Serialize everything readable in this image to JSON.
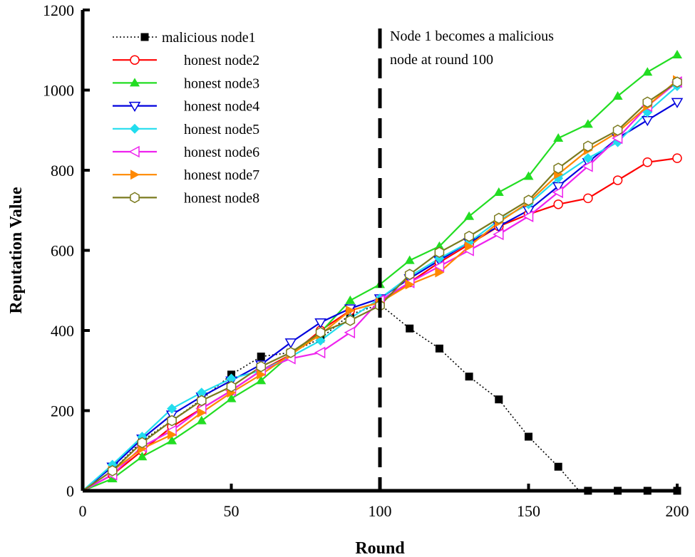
{
  "chart_data": {
    "type": "line",
    "title": "",
    "xlabel": "Round",
    "ylabel": "Reputation Value",
    "xlim": [
      0,
      200
    ],
    "ylim": [
      0,
      1200
    ],
    "xticks": [
      0,
      50,
      100,
      150,
      200
    ],
    "yticks": [
      0,
      200,
      400,
      600,
      800,
      1000,
      1200
    ],
    "legend_position": "top-left",
    "annotation": {
      "lines": [
        "Node 1 becomes a malicious",
        "node at round 100"
      ],
      "x": 100
    },
    "series": [
      {
        "name": "malicious node1",
        "color": "#000000",
        "marker": "filled-square",
        "dash": "dotted",
        "x": [
          0,
          10,
          20,
          30,
          40,
          50,
          60,
          70,
          80,
          90,
          100,
          110,
          120,
          130,
          140,
          150,
          160,
          167,
          170,
          180,
          190,
          200
        ],
        "y": [
          0,
          50,
          125,
          175,
          228,
          290,
          335,
          345,
          380,
          440,
          465,
          405,
          355,
          285,
          228,
          135,
          60,
          0,
          0,
          0,
          0,
          0
        ]
      },
      {
        "name": "honest node2",
        "color": "#ff0000",
        "marker": "open-circle",
        "dash": "solid",
        "x": [
          0,
          10,
          20,
          30,
          40,
          50,
          60,
          70,
          80,
          90,
          100,
          110,
          120,
          130,
          140,
          150,
          160,
          170,
          180,
          190,
          200
        ],
        "y": [
          0,
          40,
          100,
          160,
          205,
          250,
          300,
          340,
          400,
          450,
          470,
          520,
          570,
          615,
          660,
          690,
          715,
          730,
          775,
          820,
          830
        ]
      },
      {
        "name": "honest node3",
        "color": "#22dd22",
        "marker": "filled-triangle-up",
        "dash": "solid",
        "x": [
          0,
          10,
          20,
          30,
          40,
          50,
          60,
          70,
          80,
          90,
          100,
          110,
          120,
          130,
          140,
          150,
          160,
          170,
          180,
          190,
          200
        ],
        "y": [
          0,
          30,
          85,
          125,
          175,
          230,
          275,
          340,
          395,
          475,
          515,
          575,
          610,
          685,
          745,
          785,
          880,
          915,
          985,
          1045,
          1088
        ]
      },
      {
        "name": "honest node4",
        "color": "#0000dd",
        "marker": "open-triangle-down",
        "dash": "solid",
        "x": [
          0,
          10,
          20,
          30,
          40,
          50,
          60,
          70,
          80,
          90,
          100,
          110,
          120,
          130,
          140,
          150,
          160,
          170,
          180,
          190,
          200
        ],
        "y": [
          0,
          60,
          130,
          190,
          235,
          275,
          315,
          370,
          420,
          455,
          480,
          530,
          575,
          620,
          660,
          700,
          760,
          820,
          880,
          925,
          970
        ]
      },
      {
        "name": "honest node5",
        "color": "#22ddee",
        "marker": "filled-diamond",
        "dash": "solid",
        "x": [
          0,
          10,
          20,
          30,
          40,
          50,
          60,
          70,
          80,
          90,
          100,
          110,
          120,
          130,
          140,
          150,
          160,
          170,
          180,
          190,
          200
        ],
        "y": [
          0,
          65,
          135,
          205,
          245,
          280,
          300,
          335,
          375,
          430,
          480,
          535,
          580,
          620,
          675,
          715,
          780,
          830,
          870,
          945,
          1010
        ]
      },
      {
        "name": "honest node6",
        "color": "#ee22ee",
        "marker": "open-triangle-left",
        "dash": "solid",
        "x": [
          0,
          10,
          20,
          30,
          40,
          50,
          60,
          70,
          80,
          90,
          100,
          110,
          120,
          130,
          140,
          150,
          160,
          170,
          180,
          190,
          200
        ],
        "y": [
          0,
          40,
          110,
          150,
          205,
          250,
          300,
          330,
          345,
          395,
          475,
          520,
          560,
          600,
          640,
          685,
          745,
          810,
          880,
          960,
          1020
        ]
      },
      {
        "name": "honest node7",
        "color": "#ff8800",
        "marker": "filled-triangle-right",
        "dash": "solid",
        "x": [
          0,
          10,
          20,
          30,
          40,
          50,
          60,
          70,
          80,
          90,
          100,
          110,
          120,
          130,
          140,
          150,
          160,
          170,
          180,
          190,
          200
        ],
        "y": [
          0,
          50,
          105,
          140,
          195,
          245,
          290,
          340,
          390,
          450,
          470,
          515,
          545,
          610,
          670,
          720,
          790,
          850,
          895,
          960,
          1025
        ]
      },
      {
        "name": "honest node8",
        "color": "#7a7a1e",
        "marker": "open-hexagon",
        "dash": "solid",
        "x": [
          0,
          10,
          20,
          30,
          40,
          50,
          60,
          70,
          80,
          90,
          100,
          110,
          120,
          130,
          140,
          150,
          160,
          170,
          180,
          190,
          200
        ],
        "y": [
          0,
          50,
          120,
          175,
          225,
          260,
          310,
          345,
          395,
          425,
          462,
          540,
          595,
          635,
          680,
          725,
          805,
          860,
          900,
          970,
          1020
        ]
      }
    ]
  }
}
